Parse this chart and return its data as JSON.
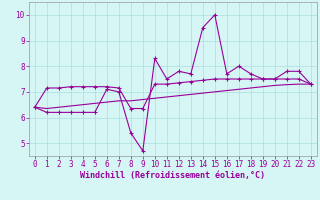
{
  "x": [
    0,
    1,
    2,
    3,
    4,
    5,
    6,
    7,
    8,
    9,
    10,
    11,
    12,
    13,
    14,
    15,
    16,
    17,
    18,
    19,
    20,
    21,
    22,
    23
  ],
  "line1": [
    6.4,
    6.2,
    6.2,
    6.2,
    6.2,
    6.2,
    7.1,
    7.0,
    5.4,
    4.7,
    8.3,
    7.5,
    7.8,
    7.7,
    9.5,
    10.0,
    7.7,
    8.0,
    7.7,
    7.5,
    7.5,
    7.8,
    7.8,
    7.3
  ],
  "line2": [
    6.4,
    7.15,
    7.15,
    7.2,
    7.2,
    7.2,
    7.2,
    7.15,
    6.35,
    6.35,
    7.3,
    7.3,
    7.35,
    7.4,
    7.45,
    7.5,
    7.5,
    7.5,
    7.5,
    7.5,
    7.5,
    7.5,
    7.5,
    7.3
  ],
  "line3": [
    6.4,
    6.35,
    6.4,
    6.45,
    6.5,
    6.55,
    6.6,
    6.65,
    6.65,
    6.7,
    6.75,
    6.8,
    6.85,
    6.9,
    6.95,
    7.0,
    7.05,
    7.1,
    7.15,
    7.2,
    7.25,
    7.28,
    7.3,
    7.3
  ],
  "color": "#990099",
  "bg_color": "#d6f5f5",
  "grid_color": "#aadddd",
  "xlabel": "Windchill (Refroidissement éolien,°C)",
  "xlim": [
    -0.5,
    23.5
  ],
  "ylim": [
    4.5,
    10.5
  ],
  "yticks": [
    5,
    6,
    7,
    8,
    9,
    10
  ],
  "xticks": [
    0,
    1,
    2,
    3,
    4,
    5,
    6,
    7,
    8,
    9,
    10,
    11,
    12,
    13,
    14,
    15,
    16,
    17,
    18,
    19,
    20,
    21,
    22,
    23
  ],
  "tick_fontsize": 5.5,
  "xlabel_fontsize": 6.0
}
